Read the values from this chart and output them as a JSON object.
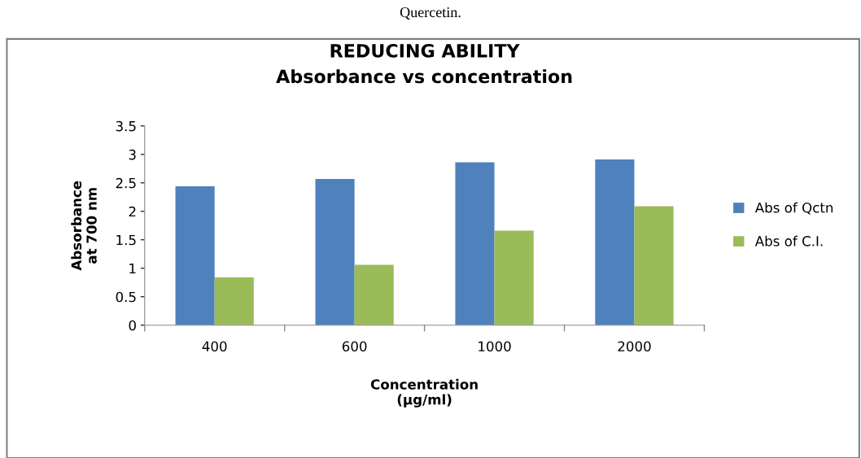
{
  "chart_data": {
    "type": "bar",
    "title": "REDUCING ABILITY\nAbsorbance vs concentration",
    "xlabel": "Concentration\n(µg/ml)",
    "ylabel": "Absorbance\nat 700 nm",
    "categories": [
      "400",
      "600",
      "1000",
      "2000"
    ],
    "series": [
      {
        "name": "Abs of Qctn",
        "color": "#4f81bd",
        "values": [
          2.44,
          2.57,
          2.86,
          2.91
        ]
      },
      {
        "name": "Abs of C.I.",
        "color": "#9bbb59",
        "values": [
          0.84,
          1.06,
          1.66,
          2.09
        ]
      }
    ],
    "ylim": [
      0,
      3.5
    ],
    "yticks": [
      0,
      0.5,
      1,
      1.5,
      2,
      2.5,
      3,
      3.5
    ],
    "grid": false,
    "legend": "right",
    "annotations": [
      "Quercetin."
    ]
  }
}
